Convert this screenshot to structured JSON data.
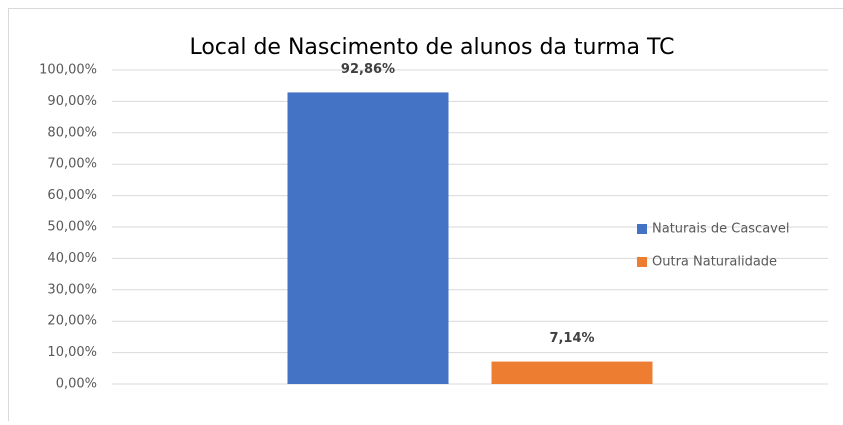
{
  "chart_data": {
    "type": "bar",
    "title": "Local de Nascimento de alunos da turma TC",
    "categories": [
      null
    ],
    "series": [
      {
        "name": "Naturais de Cascavel",
        "color": "#4472c4",
        "values": [
          92.86
        ],
        "value_labels": [
          "92,86%"
        ]
      },
      {
        "name": "Outra Naturalidade",
        "color": "#ed7d31",
        "values": [
          7.14
        ],
        "value_labels": [
          "7,14%"
        ]
      }
    ],
    "ylim": [
      0,
      100
    ],
    "yticks": [
      {
        "value": 0,
        "label": "0,00%"
      },
      {
        "value": 10,
        "label": "10,00%"
      },
      {
        "value": 20,
        "label": "20,00%"
      },
      {
        "value": 30,
        "label": "30,00%"
      },
      {
        "value": 40,
        "label": "40,00%"
      },
      {
        "value": 50,
        "label": "50,00%"
      },
      {
        "value": 60,
        "label": "60,00%"
      },
      {
        "value": 70,
        "label": "70,00%"
      },
      {
        "value": 80,
        "label": "80,00%"
      },
      {
        "value": 90,
        "label": "90,00%"
      },
      {
        "value": 100,
        "label": "100,00%"
      }
    ],
    "grid": true,
    "legend": "right"
  }
}
